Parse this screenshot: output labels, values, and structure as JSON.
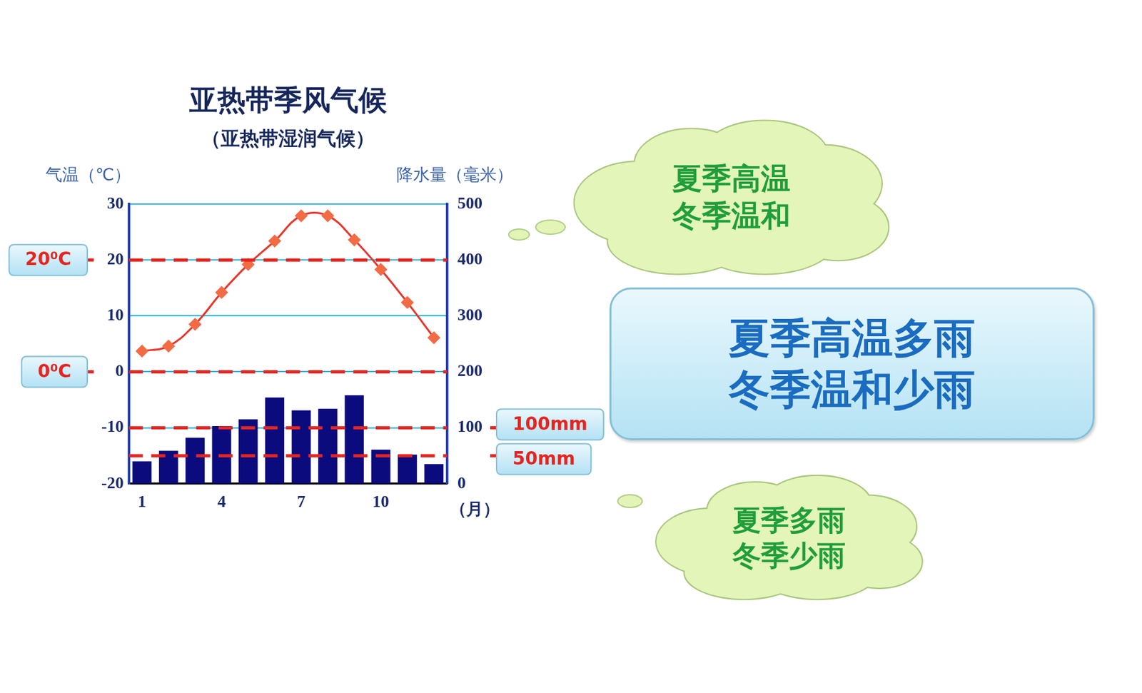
{
  "chart_data": {
    "type": "bar",
    "title": "亚热带季风气候",
    "subtitle": "（亚热带湿润气候）",
    "categories": [
      "1",
      null,
      null,
      "4",
      null,
      null,
      "7",
      null,
      null,
      "10",
      null,
      null
    ],
    "x_label": "（月）",
    "y_label": "气温（℃）",
    "y2_label": "降水量（毫米）",
    "series": [
      {
        "type": "line",
        "color": "#e8352a",
        "marker": "diamond",
        "line_style": "solid",
        "axis": "y",
        "values": [
          3.7,
          4.6,
          8.5,
          14.2,
          19.2,
          23.4,
          27.9,
          27.9,
          23.6,
          18.3,
          12.4,
          6.1
        ]
      },
      {
        "type": "bar",
        "color": "#0b0b7d",
        "axis": "y2",
        "values": [
          40,
          59,
          82,
          103,
          115,
          154,
          131,
          134,
          158,
          61,
          52,
          35
        ]
      }
    ],
    "ylim": [
      -20,
      30
    ],
    "yticks": [
      -20,
      -10,
      0,
      10,
      20,
      30
    ],
    "y2lim": [
      0,
      500
    ],
    "y2ticks": [
      0,
      100,
      200,
      300,
      400,
      500
    ],
    "grid": true,
    "reference_lines": [
      {
        "axis": "y",
        "value": 20,
        "label": "20⁰C"
      },
      {
        "axis": "y",
        "value": 0,
        "label": "0⁰C"
      },
      {
        "axis": "y2",
        "value": 100,
        "label": "100mm"
      },
      {
        "axis": "y2",
        "value": 50,
        "label": "50mm"
      }
    ],
    "annotations": {
      "temperature_note": [
        "夏季高温",
        "冬季温和"
      ],
      "summary": [
        "夏季高温多雨",
        "冬季温和少雨"
      ],
      "precipitation_note": [
        "夏季多雨",
        "冬季少雨"
      ]
    }
  }
}
